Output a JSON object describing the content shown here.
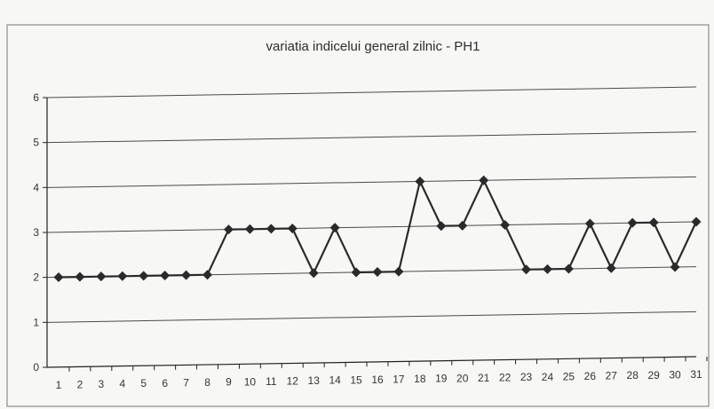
{
  "chart_data": {
    "type": "line",
    "title": "variatia indicelui general zilnic - PH1",
    "xlabel": "",
    "ylabel": "",
    "ylim": [
      0,
      6
    ],
    "y_ticks": [
      0,
      1,
      2,
      3,
      4,
      5,
      6
    ],
    "grid": true,
    "legend": "none",
    "categories": [
      "1",
      "2",
      "3",
      "4",
      "5",
      "6",
      "7",
      "8",
      "9",
      "10",
      "11",
      "12",
      "13",
      "14",
      "15",
      "16",
      "17",
      "18",
      "19",
      "20",
      "21",
      "22",
      "23",
      "24",
      "25",
      "26",
      "27",
      "28",
      "29",
      "30",
      "31"
    ],
    "series": [
      {
        "values": [
          2,
          2,
          2,
          2,
          2,
          2,
          2,
          2,
          3,
          3,
          3,
          3,
          2,
          3,
          2,
          2,
          2,
          4,
          3,
          3,
          4,
          3,
          2,
          2,
          2,
          3,
          2,
          3,
          3,
          2,
          3
        ]
      }
    ]
  },
  "colors": {
    "line": "#2a2a2a",
    "marker": "#2a2a2a",
    "grid": "#4a4a4a",
    "background": "#f7f7f5",
    "frame": "#555555"
  }
}
